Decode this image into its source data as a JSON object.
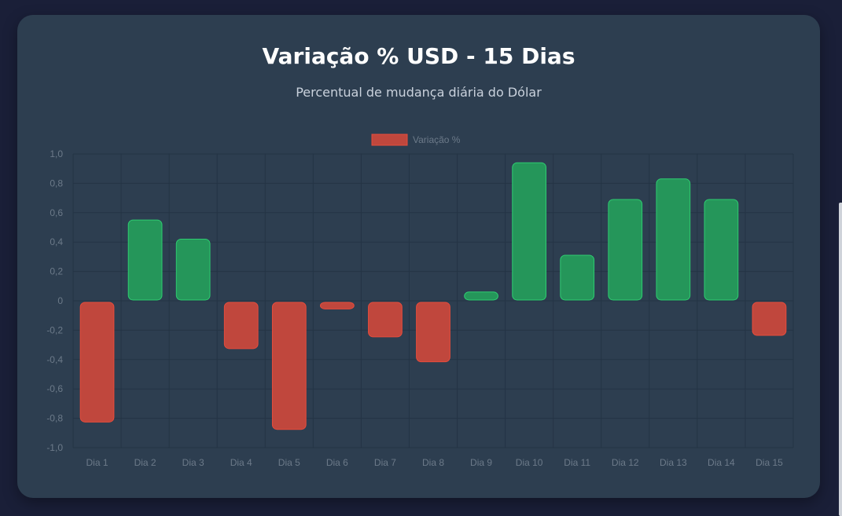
{
  "header": {
    "title": "Variação % USD - 15 Dias",
    "subtitle": "Percentual de mudança diária do Dólar"
  },
  "legend": {
    "label": "Variação %",
    "color": "#c0473d",
    "placement": "top"
  },
  "colors": {
    "positive_fill": "#25965a",
    "positive_stroke": "#2ecc71",
    "negative_fill": "#c0473d",
    "negative_stroke": "#e74c3c",
    "tick_text": "#6c7a89",
    "grid": "#243445",
    "card_bg": "#2d3e50",
    "page_bg": "#1a1f38"
  },
  "chart_data": {
    "type": "bar",
    "title": "Variação % USD - 15 Dias",
    "subtitle": "Percentual de mudança diária do Dólar",
    "categories": [
      "Dia 1",
      "Dia 2",
      "Dia 3",
      "Dia 4",
      "Dia 5",
      "Dia 6",
      "Dia 7",
      "Dia 8",
      "Dia 9",
      "Dia 10",
      "Dia 11",
      "Dia 12",
      "Dia 13",
      "Dia 14",
      "Dia 15"
    ],
    "series": [
      {
        "name": "Variação %",
        "values": [
          -0.82,
          0.55,
          0.42,
          -0.32,
          -0.87,
          -0.05,
          -0.24,
          -0.41,
          0.06,
          0.94,
          0.31,
          0.69,
          0.83,
          0.69,
          -0.23
        ]
      }
    ],
    "yticks": [
      "1,0",
      "0,8",
      "0,6",
      "0,4",
      "0,2",
      "0",
      "-0,2",
      "-0,4",
      "-0,6",
      "-0,8",
      "-1,0"
    ],
    "ylim": [
      -1.0,
      1.0
    ],
    "xlabel": "",
    "ylabel": "",
    "grid": true,
    "legend_position": "top"
  }
}
